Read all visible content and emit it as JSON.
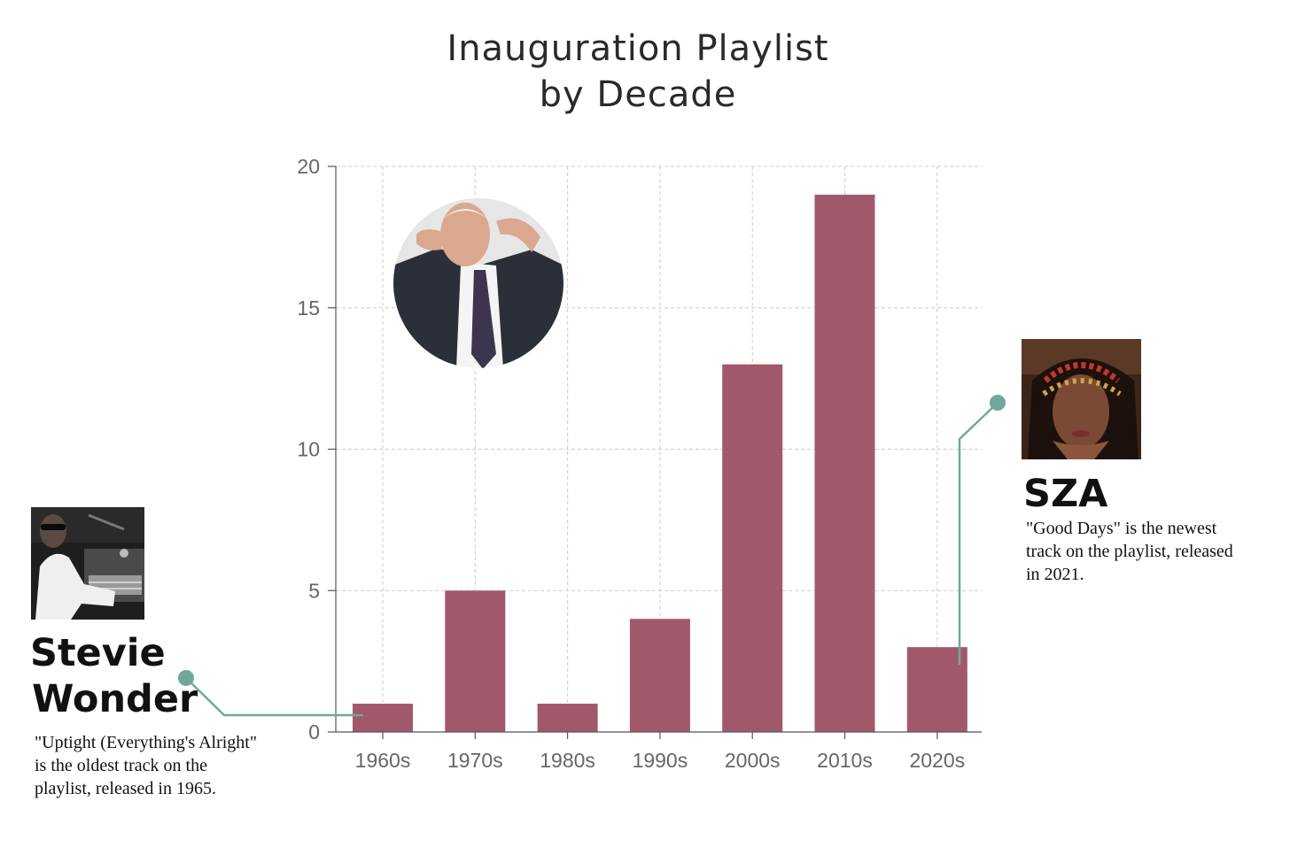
{
  "chart_data": {
    "type": "bar",
    "title_lines": [
      "Inauguration Playlist",
      "by Decade"
    ],
    "categories": [
      "1960s",
      "1970s",
      "1980s",
      "1990s",
      "2000s",
      "2010s",
      "2020s"
    ],
    "values": [
      1,
      5,
      1,
      4,
      13,
      19,
      3
    ],
    "y_ticks": [
      "0",
      "5",
      "10",
      "15",
      "20"
    ],
    "ylim": [
      0,
      20
    ],
    "xlabel": "",
    "ylabel": "",
    "grid": true,
    "bar_color": "#a2586b"
  },
  "annotations": {
    "accent_color": "#6fa89a",
    "oldest": {
      "name_lines": [
        "Stevie",
        "Wonder"
      ],
      "caption_lines": [
        "\"Uptight (Everything's Alright\"",
        "is the oldest track on the",
        "playlist, released in 1965."
      ],
      "photo_icon": "stevie-wonder-photo"
    },
    "newest": {
      "name": "SZA",
      "caption_lines": [
        "\"Good Days\" is the newest",
        "track on the playlist, released",
        "in 2021."
      ],
      "photo_icon": "sza-photo"
    },
    "center_photo_icon": "biden-photo"
  }
}
